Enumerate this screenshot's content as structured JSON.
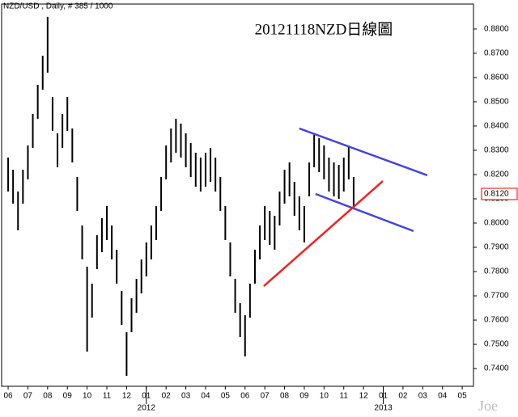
{
  "chart_data": {
    "type": "hilo",
    "header": "NZD/USD , Daily, # 385 / 1000",
    "title": "20121118NZD日線圖",
    "watermark": "Joe",
    "color": "#000000",
    "x": [
      0,
      0.25,
      0.5,
      0.75,
      1,
      1.25,
      1.5,
      1.75,
      2,
      2.25,
      2.5,
      2.75,
      3,
      3.25,
      3.5,
      3.75,
      4,
      4.25,
      4.5,
      4.75,
      5,
      5.25,
      5.5,
      5.75,
      6,
      6.25,
      6.5,
      6.75,
      7,
      7.25,
      7.5,
      7.75,
      8,
      8.25,
      8.5,
      8.75,
      9,
      9.25,
      9.5,
      9.75,
      10,
      10.25,
      10.5,
      10.75,
      11,
      11.25,
      11.5,
      11.75,
      12,
      12.25,
      12.5,
      12.75,
      13,
      13.25,
      13.5,
      13.75,
      14,
      14.25,
      14.5,
      14.75,
      15,
      15.25,
      15.5,
      15.75,
      16,
      16.25,
      16.5,
      16.75,
      17,
      17.25,
      17.5
    ],
    "low": [
      0.813,
      0.808,
      0.797,
      0.808,
      0.818,
      0.831,
      0.843,
      0.855,
      0.862,
      0.838,
      0.823,
      0.831,
      0.838,
      0.825,
      0.805,
      0.785,
      0.747,
      0.761,
      0.781,
      0.788,
      0.793,
      0.785,
      0.775,
      0.758,
      0.737,
      0.755,
      0.763,
      0.771,
      0.778,
      0.785,
      0.793,
      0.805,
      0.818,
      0.825,
      0.829,
      0.827,
      0.823,
      0.819,
      0.815,
      0.813,
      0.815,
      0.817,
      0.813,
      0.805,
      0.793,
      0.778,
      0.763,
      0.753,
      0.745,
      0.761,
      0.775,
      0.785,
      0.793,
      0.791,
      0.789,
      0.799,
      0.808,
      0.811,
      0.803,
      0.797,
      0.792,
      0.811,
      0.823,
      0.821,
      0.818,
      0.813,
      0.811,
      0.81,
      0.813,
      0.818,
      0.806
    ],
    "high": [
      0.827,
      0.822,
      0.813,
      0.822,
      0.832,
      0.845,
      0.857,
      0.869,
      0.885,
      0.852,
      0.837,
      0.845,
      0.852,
      0.839,
      0.819,
      0.799,
      0.782,
      0.775,
      0.795,
      0.802,
      0.807,
      0.799,
      0.789,
      0.772,
      0.755,
      0.769,
      0.777,
      0.785,
      0.792,
      0.799,
      0.807,
      0.819,
      0.832,
      0.839,
      0.843,
      0.841,
      0.837,
      0.833,
      0.829,
      0.827,
      0.829,
      0.831,
      0.827,
      0.819,
      0.807,
      0.792,
      0.777,
      0.767,
      0.762,
      0.775,
      0.789,
      0.799,
      0.807,
      0.805,
      0.803,
      0.813,
      0.822,
      0.825,
      0.817,
      0.811,
      0.807,
      0.825,
      0.837,
      0.835,
      0.832,
      0.827,
      0.825,
      0.824,
      0.827,
      0.832,
      0.819
    ],
    "lines": [
      {
        "color": "#4444dd",
        "x": [
          14.75,
          21.23
        ],
        "y": [
          0.839,
          0.8197
        ]
      },
      {
        "color": "#4444dd",
        "x": [
          15.57,
          20.53
        ],
        "y": [
          0.812,
          0.7967
        ]
      },
      {
        "color": "#ee2222",
        "x": [
          12.95,
          18.98
        ],
        "y": [
          0.774,
          0.8173
        ]
      }
    ],
    "last_price": {
      "value": 0.812,
      "label": "0.8120"
    },
    "xlim": [
      -0.33,
      23.57
    ],
    "xticks": [
      {
        "value": 0,
        "label": "06"
      },
      {
        "value": 1,
        "label": "07"
      },
      {
        "value": 2,
        "label": "08"
      },
      {
        "value": 3,
        "label": "09"
      },
      {
        "value": 4,
        "label": "10"
      },
      {
        "value": 5,
        "label": "11"
      },
      {
        "value": 6,
        "label": "12"
      },
      {
        "value": 7,
        "label": "01"
      },
      {
        "value": 8,
        "label": "02"
      },
      {
        "value": 9,
        "label": "03"
      },
      {
        "value": 10,
        "label": "04"
      },
      {
        "value": 11,
        "label": "05"
      },
      {
        "value": 12,
        "label": "06"
      },
      {
        "value": 13,
        "label": "07"
      },
      {
        "value": 14,
        "label": "08"
      },
      {
        "value": 15,
        "label": "09"
      },
      {
        "value": 16,
        "label": "10"
      },
      {
        "value": 17,
        "label": "11"
      },
      {
        "value": 18,
        "label": "12"
      },
      {
        "value": 19,
        "label": "01"
      },
      {
        "value": 20,
        "label": "02"
      },
      {
        "value": 21,
        "label": "03"
      },
      {
        "value": 22,
        "label": "04"
      },
      {
        "value": 23,
        "label": "05"
      }
    ],
    "year_labels": [
      {
        "value": 7,
        "label": "2012"
      },
      {
        "value": 19,
        "label": "2013"
      }
    ],
    "ylim": [
      0.7327,
      0.8903
    ],
    "yticks": [
      {
        "value": 0.74,
        "label": "0.7400"
      },
      {
        "value": 0.75,
        "label": "0.7500"
      },
      {
        "value": 0.76,
        "label": "0.7600"
      },
      {
        "value": 0.77,
        "label": "0.7700"
      },
      {
        "value": 0.78,
        "label": "0.7800"
      },
      {
        "value": 0.79,
        "label": "0.7900"
      },
      {
        "value": 0.8,
        "label": "0.8000"
      },
      {
        "value": 0.81,
        "label": "0.8100"
      },
      {
        "value": 0.82,
        "label": "0.8200"
      },
      {
        "value": 0.83,
        "label": "0.8300"
      },
      {
        "value": 0.84,
        "label": "0.8400"
      },
      {
        "value": 0.85,
        "label": "0.8500"
      },
      {
        "value": 0.86,
        "label": "0.8600"
      },
      {
        "value": 0.87,
        "label": "0.8700"
      },
      {
        "value": 0.88,
        "label": "0.8800"
      }
    ]
  }
}
